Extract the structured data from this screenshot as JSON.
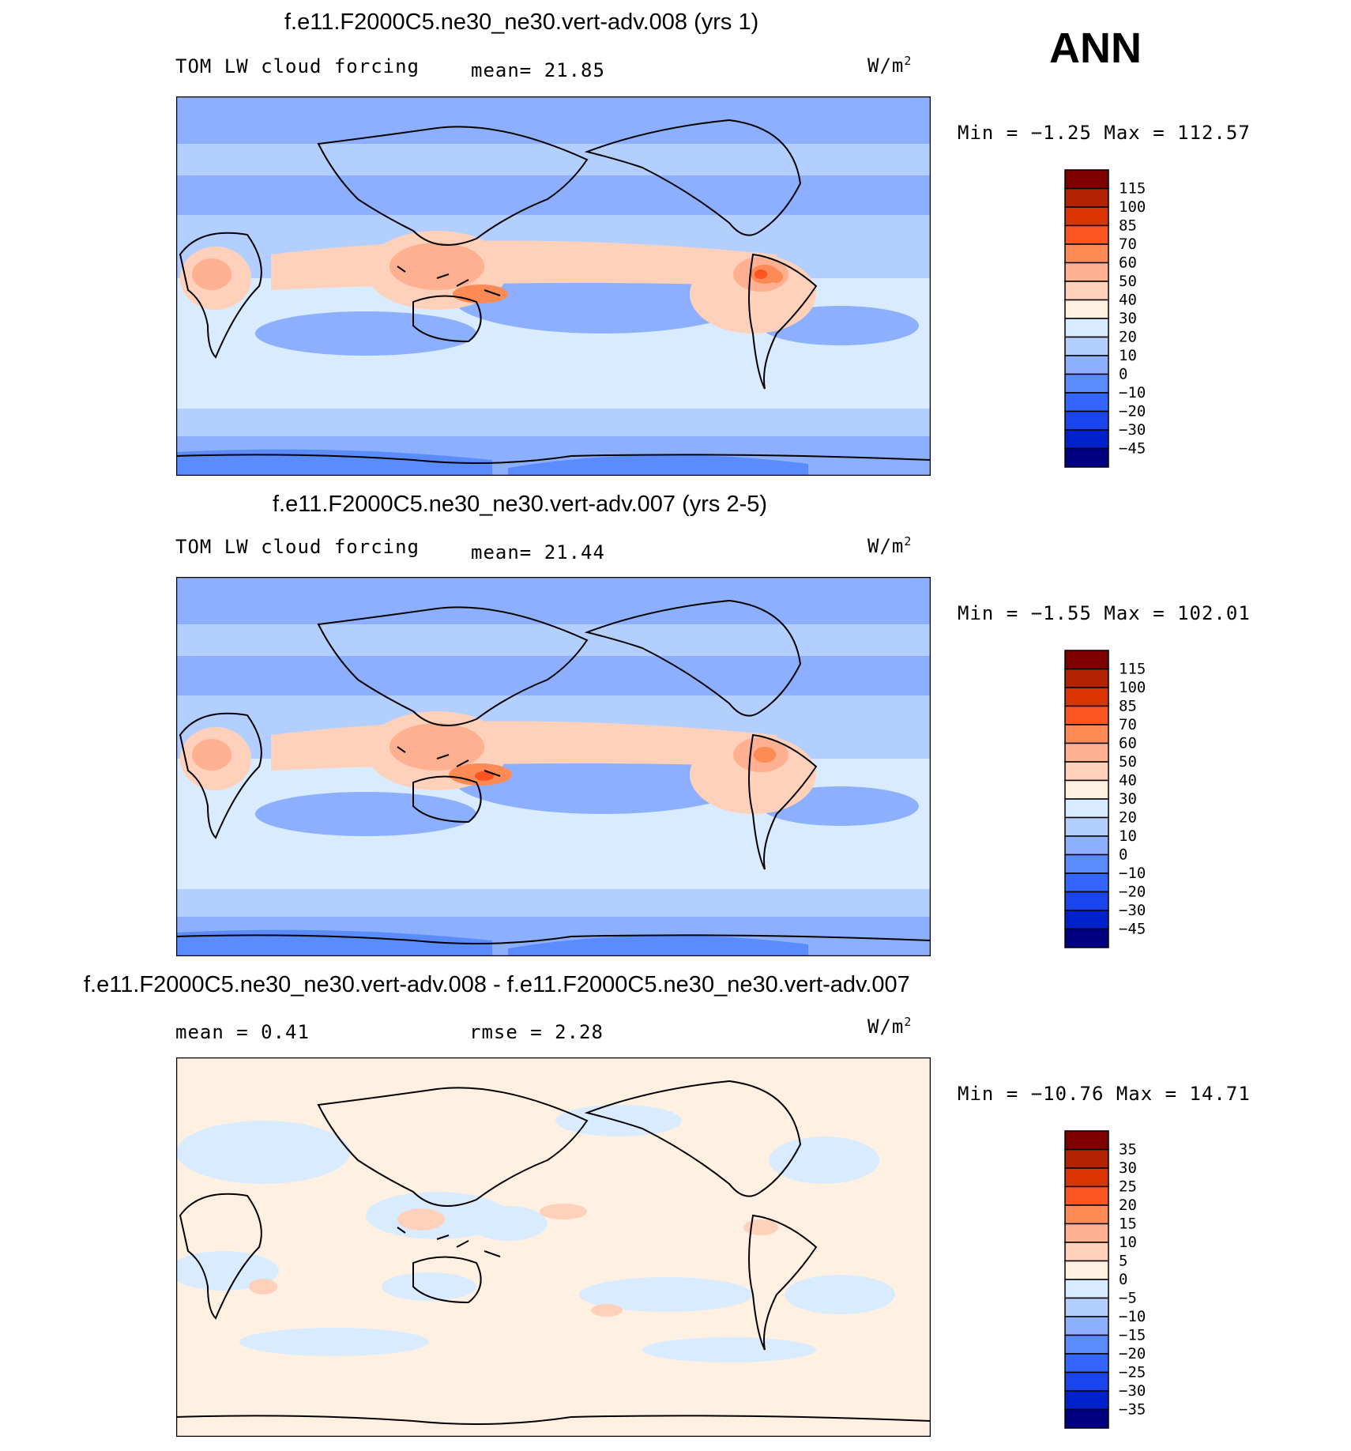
{
  "season": "ANN",
  "panels": [
    {
      "id": "p1",
      "title": "f.e11.F2000C5.ne30_ne30.vert-adv.008 (yrs 1)",
      "left_label": "TOM LW cloud forcing",
      "stat1": "mean=   21.85",
      "units": "W/m",
      "units_exp": "2",
      "minmax": "Min =   −1.25 Max = 112.57",
      "palette": "abs"
    },
    {
      "id": "p2",
      "title": "f.e11.F2000C5.ne30_ne30.vert-adv.007 (yrs 2-5)",
      "left_label": "TOM LW cloud forcing",
      "stat1": "mean=   21.44",
      "units": "W/m",
      "units_exp": "2",
      "minmax": "Min =   −1.55 Max = 102.01",
      "palette": "abs"
    },
    {
      "id": "p3",
      "title": "f.e11.F2000C5.ne30_ne30.vert-adv.008 - f.e11.F2000C5.ne30_ne30.vert-adv.007",
      "left_label": "mean =    0.41",
      "stat1": "rmse =    2.28",
      "units": "W/m",
      "units_exp": "2",
      "minmax": "Min = −10.76 Max =   14.71",
      "palette": "diff"
    }
  ],
  "chart_data": [
    {
      "type": "heatmap",
      "title": "f.e11.F2000C5.ne30_ne30.vert-adv.008 (yrs 1)",
      "variable": "TOM LW cloud forcing",
      "units": "W/m2",
      "mean": 21.85,
      "min": -1.25,
      "max": 112.57,
      "levels": [
        "115",
        "100",
        "85",
        "70",
        "60",
        "50",
        "40",
        "30",
        "20",
        "10",
        "0",
        "−10",
        "−20",
        "−30",
        "−45"
      ],
      "colors": [
        "#800000",
        "#b22200",
        "#dd3300",
        "#fe5520",
        "#fe8a55",
        "#ffb091",
        "#ffd1bb",
        "#fff0e1",
        "#d9ebff",
        "#b3cfff",
        "#8cb0ff",
        "#5a8cff",
        "#3366ff",
        "#1a44ee",
        "#0022cc",
        "#000080"
      ]
    },
    {
      "type": "heatmap",
      "title": "f.e11.F2000C5.ne30_ne30.vert-adv.007 (yrs 2-5)",
      "variable": "TOM LW cloud forcing",
      "units": "W/m2",
      "mean": 21.44,
      "min": -1.55,
      "max": 102.01,
      "levels": [
        "115",
        "100",
        "85",
        "70",
        "60",
        "50",
        "40",
        "30",
        "20",
        "10",
        "0",
        "−10",
        "−20",
        "−30",
        "−45"
      ],
      "colors": [
        "#800000",
        "#b22200",
        "#dd3300",
        "#fe5520",
        "#fe8a55",
        "#ffb091",
        "#ffd1bb",
        "#fff0e1",
        "#d9ebff",
        "#b3cfff",
        "#8cb0ff",
        "#5a8cff",
        "#3366ff",
        "#1a44ee",
        "#0022cc",
        "#000080"
      ]
    },
    {
      "type": "heatmap",
      "title": "f.e11.F2000C5.ne30_ne30.vert-adv.008 - f.e11.F2000C5.ne30_ne30.vert-adv.007",
      "units": "W/m2",
      "mean": 0.41,
      "rmse": 2.28,
      "min": -10.76,
      "max": 14.71,
      "levels": [
        "35",
        "30",
        "25",
        "20",
        "15",
        "10",
        "5",
        "0",
        "−5",
        "−10",
        "−15",
        "−20",
        "−25",
        "−30",
        "−35"
      ],
      "colors": [
        "#800000",
        "#b22200",
        "#dd3300",
        "#fe5520",
        "#fe8a55",
        "#ffb091",
        "#ffd1bb",
        "#fff0e1",
        "#d9ebff",
        "#b3cfff",
        "#8cb0ff",
        "#5a8cff",
        "#3366ff",
        "#1a44ee",
        "#0022cc",
        "#000080"
      ]
    }
  ]
}
